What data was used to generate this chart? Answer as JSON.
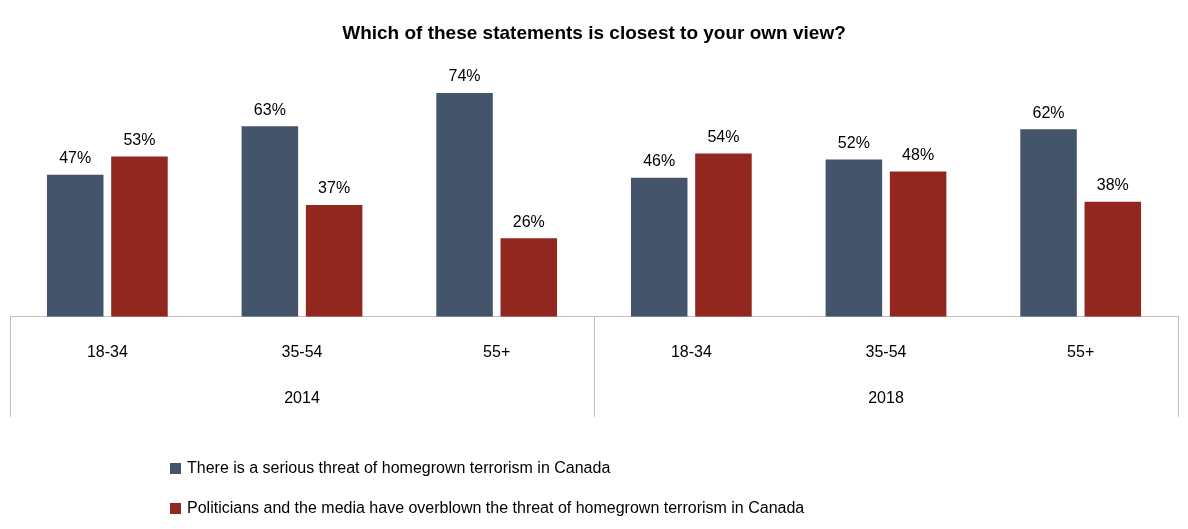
{
  "chart_data": {
    "type": "bar",
    "title": "Which of these statements is closest to your own view?",
    "categories": [
      "18-34",
      "35-54",
      "55+",
      "18-34",
      "35-54",
      "55+"
    ],
    "series": [
      {
        "name": "There is a serious threat of homegrown terrorism in Canada",
        "color": "#44546a",
        "values": [
          47,
          63,
          74,
          46,
          52,
          62
        ],
        "value_labels": [
          "47%",
          "63%",
          "74%",
          "46%",
          "52%",
          "62%"
        ]
      },
      {
        "name": "Politicians and the media have overblown the threat of homegrown terrorism in Canada",
        "color": "#922720",
        "values": [
          53,
          37,
          26,
          54,
          48,
          38
        ],
        "value_labels": [
          "53%",
          "37%",
          "26%",
          "54%",
          "48%",
          "38%"
        ]
      }
    ],
    "annotations": [
      "2014",
      "2018"
    ],
    "legend": "bottom",
    "grid": false
  }
}
